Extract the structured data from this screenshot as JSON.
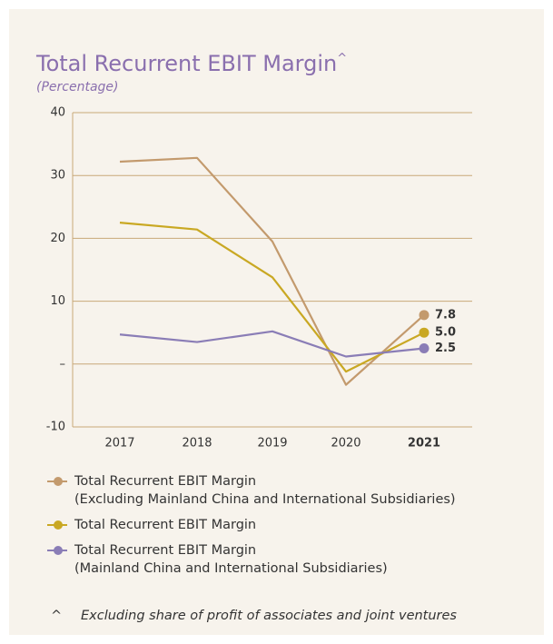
{
  "chart_data": {
    "type": "line",
    "title": "Total Recurrent EBIT Margin",
    "title_mark": "^",
    "subtitle": "(Percentage)",
    "categories": [
      "2017",
      "2018",
      "2019",
      "2020",
      "2021"
    ],
    "series": [
      {
        "name": "Total Recurrent EBIT Margin\n(Excluding Mainland China and International Subsidiaries)",
        "color": "#c39a6d",
        "values": [
          32.2,
          32.8,
          19.5,
          -3.3,
          7.8
        ],
        "value_labels": [
          null,
          null,
          null,
          null,
          "7.8"
        ]
      },
      {
        "name": "Total Recurrent EBIT Margin",
        "color": "#c9a823",
        "values": [
          22.5,
          21.4,
          13.8,
          -1.2,
          5.0
        ],
        "value_labels": [
          null,
          null,
          null,
          null,
          "5.0"
        ]
      },
      {
        "name": "Total Recurrent EBIT Margin\n(Mainland China and International Subsidiaries)",
        "color": "#8a7db6",
        "values": [
          4.7,
          3.5,
          5.2,
          1.2,
          2.5
        ],
        "value_labels": [
          null,
          null,
          null,
          null,
          "2.5"
        ]
      }
    ],
    "ylim": [
      -10,
      40
    ],
    "yticks": [
      -10,
      {
        "value": 0,
        "label": "–"
      },
      10,
      20,
      30,
      40
    ],
    "grid": true,
    "footnote": {
      "symbol": "^",
      "text": "Excluding share of profit of associates and joint ventures"
    }
  }
}
